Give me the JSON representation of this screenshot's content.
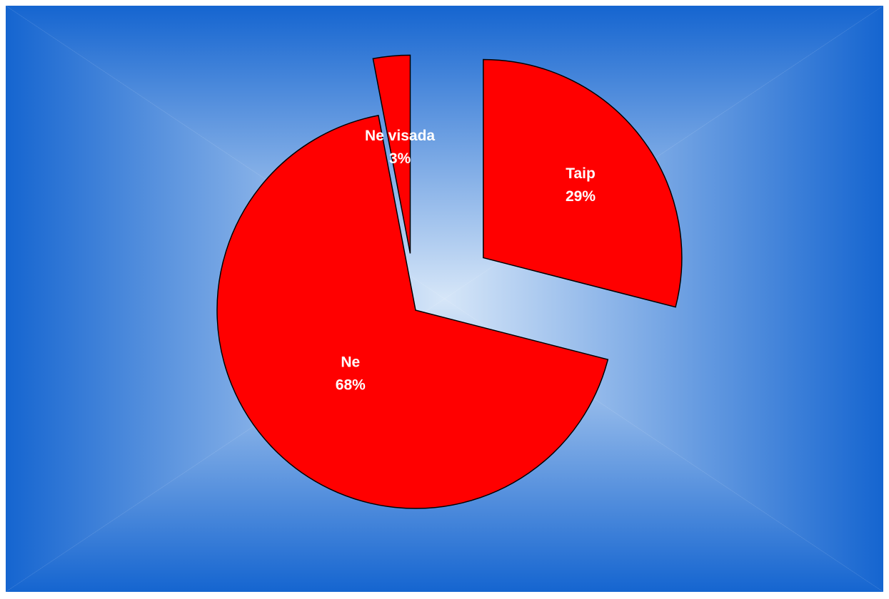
{
  "chart_data": {
    "type": "pie",
    "title": "",
    "slices": [
      {
        "label": "Taip",
        "value": 29,
        "display": "29%"
      },
      {
        "label": "Ne",
        "value": 68,
        "display": "68%"
      },
      {
        "label": "Ne visada",
        "value": 3,
        "display": "3%"
      }
    ],
    "exploded": true,
    "legend": "none",
    "data_labels": "inside"
  },
  "colors": {
    "slice_fill": "#ff0000",
    "slice_stroke": "#000000",
    "label_text": "#ffffff",
    "background_edge": "#1565d0",
    "background_center": "#d6e6f8"
  }
}
